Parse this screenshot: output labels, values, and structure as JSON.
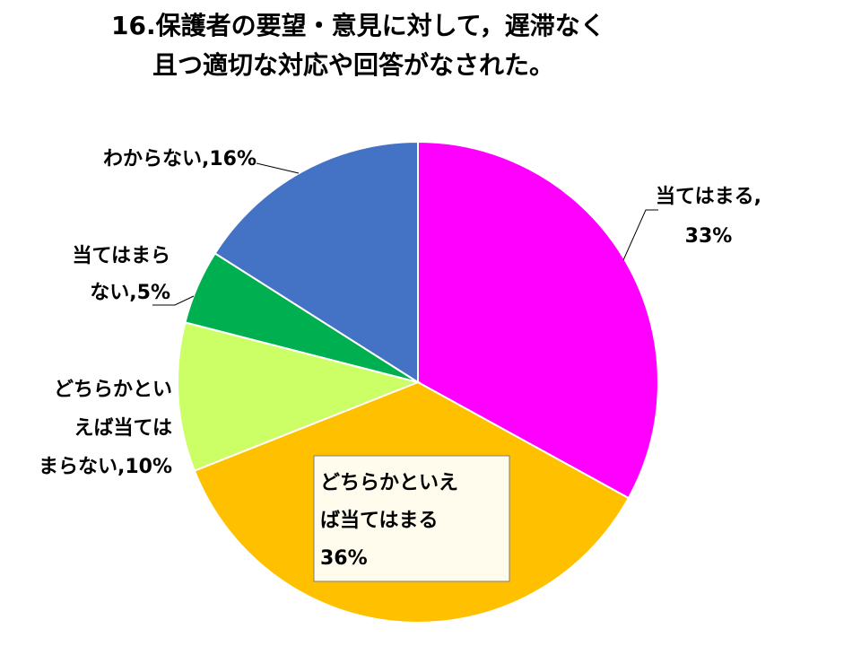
{
  "chart_data": {
    "type": "pie",
    "title": [
      "16.保護者の要望・意見に対して，遅滞なく",
      "且つ適切な対応や回答がなされた。"
    ],
    "slices": [
      {
        "name": "当てはまる",
        "value": 33,
        "color": "#ff00ff",
        "label_lines": [
          "当てはまる,",
          "33%"
        ]
      },
      {
        "name": "どちらかといえば当てはまる",
        "value": 36,
        "color": "#ffc000",
        "label_lines": [
          "どちらかといえ",
          "ば当てはまる",
          "36%"
        ]
      },
      {
        "name": "どちらかといえば当てはまらない",
        "value": 10,
        "color": "#ccff66",
        "label_lines": [
          "どちらかとい",
          "えば当ては",
          "まらない,10%"
        ]
      },
      {
        "name": "当てはまらない",
        "value": 5,
        "color": "#00b050",
        "label_lines": [
          "当てはまら",
          "ない,5%"
        ]
      },
      {
        "name": "わからない",
        "value": 16,
        "color": "#4472c4",
        "label_lines": [
          "わからない,16%"
        ]
      }
    ]
  }
}
